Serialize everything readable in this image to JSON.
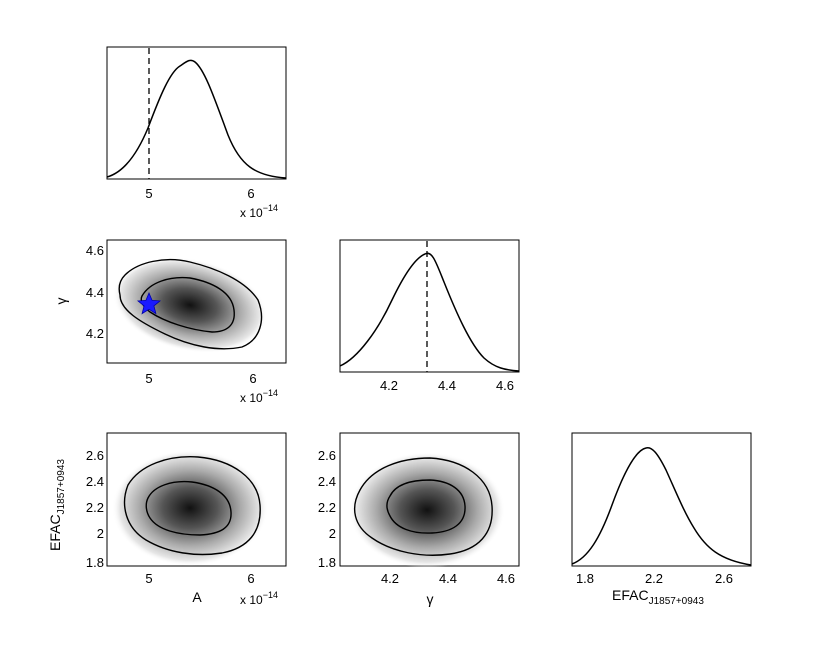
{
  "chart_data": [
    {
      "type": "line",
      "panel": "A-marginal",
      "x": [
        4.6,
        4.8,
        5.0,
        5.2,
        5.4,
        5.6,
        5.8,
        6.0,
        6.3
      ],
      "y": [
        0.02,
        0.12,
        0.45,
        0.85,
        1.0,
        0.8,
        0.42,
        0.12,
        0.01
      ],
      "xlim": [
        4.6,
        6.3
      ],
      "xticks": [
        "5",
        "6"
      ],
      "truth_line": 5.0,
      "scale_note": {
        "prefix": "x 10",
        "exponent": "−14"
      }
    },
    {
      "type": "heatmap",
      "panel": "gamma-vs-A",
      "xlim": [
        4.6,
        6.3
      ],
      "ylim": [
        4.07,
        4.64
      ],
      "xticks": [
        "5",
        "6"
      ],
      "yticks": [
        "4.2",
        "4.4",
        "4.6"
      ],
      "ylabel": "γ",
      "peak": {
        "x": 5.4,
        "y": 4.32
      },
      "injected_value": {
        "x": 5.0,
        "y": 4.33,
        "marker": "star",
        "color": "#1a1aff"
      },
      "scale_note": {
        "prefix": "x 10",
        "exponent": "−14"
      }
    },
    {
      "type": "line",
      "panel": "gamma-marginal",
      "x": [
        4.05,
        4.15,
        4.25,
        4.3,
        4.35,
        4.4,
        4.5,
        4.63
      ],
      "y": [
        0.05,
        0.25,
        0.75,
        0.95,
        1.0,
        0.85,
        0.35,
        0.04
      ],
      "xlim": [
        4.05,
        4.64
      ],
      "xticks": [
        "4.2",
        "4.4",
        "4.6"
      ],
      "truth_line": 4.33
    },
    {
      "type": "heatmap",
      "panel": "EFAC-vs-A",
      "xlim": [
        4.6,
        6.3
      ],
      "ylim": [
        1.75,
        2.76
      ],
      "xticks": [
        "5",
        "6"
      ],
      "yticks": [
        "1.8",
        "2",
        "2.2",
        "2.4",
        "2.6"
      ],
      "xlabel": "A",
      "ylabel": {
        "main": "EFAC",
        "subscript": "J1857+0943"
      },
      "peak": {
        "x": 5.4,
        "y": 2.15
      },
      "scale_note": {
        "prefix": "x 10",
        "exponent": "−14"
      }
    },
    {
      "type": "heatmap",
      "panel": "EFAC-vs-gamma",
      "xlim": [
        4.05,
        4.64
      ],
      "ylim": [
        1.75,
        2.76
      ],
      "xticks": [
        "4.2",
        "4.4",
        "4.6"
      ],
      "yticks": [
        "1.8",
        "2",
        "2.2",
        "2.4",
        "2.6"
      ],
      "xlabel": "γ",
      "peak": {
        "x": 4.33,
        "y": 2.17
      }
    },
    {
      "type": "line",
      "panel": "EFAC-marginal",
      "x": [
        1.75,
        1.9,
        2.0,
        2.1,
        2.17,
        2.25,
        2.35,
        2.5,
        2.6,
        2.76
      ],
      "y": [
        0.03,
        0.15,
        0.5,
        0.88,
        1.0,
        0.9,
        0.55,
        0.18,
        0.05,
        0.01
      ],
      "xlim": [
        1.75,
        2.76
      ],
      "xticks": [
        "1.8",
        "2.2",
        "2.6"
      ],
      "xlabel": {
        "main": "EFAC",
        "subscript": "J1857+0943"
      }
    }
  ]
}
